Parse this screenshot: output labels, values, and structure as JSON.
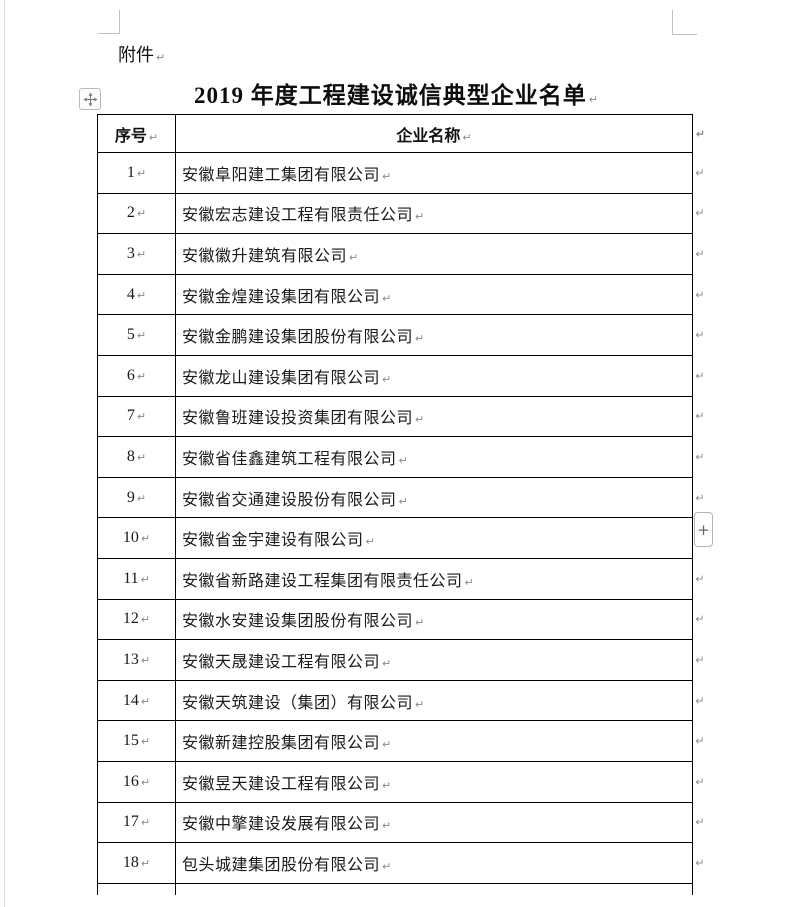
{
  "document": {
    "attachment_label": "附件",
    "title": "2019 年度工程建设诚信典型企业名单",
    "paragraph_mark": "↵"
  },
  "table": {
    "headers": [
      "序号",
      "企业名称"
    ],
    "rows": [
      {
        "no": "1",
        "name": "安徽阜阳建工集团有限公司"
      },
      {
        "no": "2",
        "name": "安徽宏志建设工程有限责任公司"
      },
      {
        "no": "3",
        "name": "安徽徽升建筑有限公司"
      },
      {
        "no": "4",
        "name": "安徽金煌建设集团有限公司"
      },
      {
        "no": "5",
        "name": "安徽金鹏建设集团股份有限公司"
      },
      {
        "no": "6",
        "name": "安徽龙山建设集团有限公司"
      },
      {
        "no": "7",
        "name": "安徽鲁班建设投资集团有限公司"
      },
      {
        "no": "8",
        "name": "安徽省佳鑫建筑工程有限公司"
      },
      {
        "no": "9",
        "name": "安徽省交通建设股份有限公司"
      },
      {
        "no": "10",
        "name": "安徽省金宇建设有限公司"
      },
      {
        "no": "11",
        "name": "安徽省新路建设工程集团有限责任公司"
      },
      {
        "no": "12",
        "name": "安徽水安建设集团股份有限公司"
      },
      {
        "no": "13",
        "name": "安徽天晟建设工程有限公司"
      },
      {
        "no": "14",
        "name": "安徽天筑建设（集团）有限公司"
      },
      {
        "no": "15",
        "name": "安徽新建控股集团有限公司"
      },
      {
        "no": "16",
        "name": "安徽昱天建设工程有限公司"
      },
      {
        "no": "17",
        "name": "安徽中擎建设发展有限公司"
      },
      {
        "no": "18",
        "name": "包头城建集团股份有限公司"
      }
    ]
  },
  "controls": {
    "add_button_label": "+"
  },
  "colors": {
    "table_border": "#000000",
    "text": "#1a1a1a",
    "formatting_mark": "#8a8a8a",
    "boundary_mark": "#c2c2c2"
  }
}
